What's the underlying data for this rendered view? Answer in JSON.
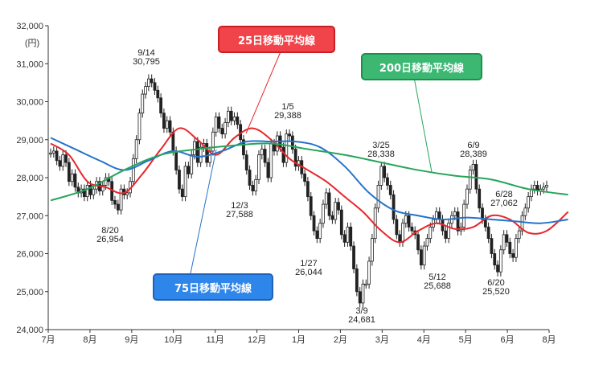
{
  "chart_data": {
    "type": "line",
    "y_unit_label": "(円)",
    "ylim": [
      24000,
      32000
    ],
    "y_ticks": [
      "24,000",
      "25,000",
      "26,000",
      "27,000",
      "28,000",
      "29,000",
      "30,000",
      "31,000",
      "32,000"
    ],
    "x_ticks": [
      "7月",
      "8月",
      "9月",
      "10月",
      "11月",
      "12月",
      "1月",
      "2月",
      "3月",
      "4月",
      "5月",
      "6月",
      "8月"
    ],
    "grid": false,
    "price_series": {
      "name": "",
      "color": "#222222",
      "values": [
        28650,
        28700,
        28450,
        28300,
        28600,
        28400,
        27900,
        28100,
        27750,
        27600,
        27700,
        27500,
        27800,
        27550,
        27700,
        27900,
        27650,
        27800,
        28000,
        27900,
        27400,
        27300,
        27150,
        27700,
        27550,
        27600,
        27900,
        28500,
        29000,
        29700,
        30200,
        30400,
        30600,
        30500,
        30300,
        30100,
        29700,
        29300,
        29500,
        29200,
        28700,
        28200,
        27700,
        27500,
        28300,
        28100,
        28600,
        28950,
        28400,
        28800,
        28900,
        28400,
        28700,
        29200,
        29600,
        29300,
        29150,
        29450,
        29750,
        29500,
        29600,
        29400,
        29000,
        28600,
        28200,
        27800,
        27650,
        27950,
        28600,
        28750,
        28400,
        28000,
        28900,
        28700,
        29100,
        28800,
        28400,
        29150,
        29100,
        28750,
        28300,
        28450,
        28100,
        27900,
        27500,
        27000,
        26600,
        26400,
        26800,
        27300,
        27600,
        27000,
        26900,
        27350,
        27150,
        26500,
        26300,
        26700,
        26200,
        25600,
        25000,
        24700,
        25200,
        25200,
        25800,
        26400,
        27200,
        27800,
        28300,
        28000,
        27800,
        27550,
        26900,
        26500,
        26300,
        26800,
        27000,
        26700,
        26600,
        26500,
        26100,
        25700,
        26200,
        26400,
        26700,
        26900,
        27100,
        26900,
        26600,
        26400,
        26800,
        27000,
        27100,
        26600,
        26700,
        27300,
        27700,
        28200,
        28350,
        27700,
        27200,
        26900,
        26700,
        26400,
        26000,
        25700,
        25520,
        26100,
        26500,
        26300,
        26000,
        25900,
        26400,
        26600,
        27000,
        27200,
        27500,
        27700,
        27800,
        27650,
        27700,
        27750,
        27800
      ]
    },
    "moving_averages": [
      {
        "name": "25日移動平均線",
        "color": "#e8262a",
        "x": [
          0,
          6,
          12,
          18,
          24,
          30,
          36,
          42,
          48,
          54,
          60,
          66,
          72,
          78,
          84,
          90,
          96,
          102,
          108,
          114,
          120,
          126,
          132,
          138,
          144,
          150,
          156,
          162,
          169
        ],
        "values": [
          28900,
          28600,
          27900,
          27750,
          27600,
          28100,
          28750,
          29300,
          29000,
          28600,
          29050,
          29300,
          29000,
          28500,
          28200,
          27900,
          27500,
          27100,
          26600,
          26300,
          26600,
          26800,
          26650,
          26700,
          27000,
          26900,
          26550,
          26600,
          27100
        ]
      },
      {
        "name": "75日移動平均線",
        "color": "#2573c9",
        "x": [
          0,
          8,
          16,
          24,
          32,
          40,
          48,
          56,
          64,
          72,
          80,
          88,
          96,
          104,
          112,
          120,
          128,
          136,
          144,
          152,
          160,
          169
        ],
        "values": [
          29050,
          28750,
          28450,
          28200,
          28450,
          28700,
          28550,
          28700,
          28950,
          28950,
          28950,
          28800,
          28300,
          27600,
          27150,
          27000,
          26900,
          26950,
          26900,
          26850,
          26800,
          26900
        ]
      },
      {
        "name": "200日移動平均線",
        "color": "#27a55a",
        "x": [
          0,
          12,
          24,
          36,
          48,
          60,
          72,
          84,
          96,
          108,
          120,
          132,
          144,
          156,
          169
        ],
        "values": [
          27400,
          27700,
          28200,
          28600,
          28750,
          28850,
          28900,
          28750,
          28600,
          28400,
          28200,
          28050,
          27950,
          27700,
          27550
        ]
      }
    ],
    "annotations": [
      {
        "date": "9/14",
        "value": "30,795"
      },
      {
        "date": "8/20",
        "value": "26,954"
      },
      {
        "date": "1/5",
        "value": "29,388"
      },
      {
        "date": "12/3",
        "value": "27,588"
      },
      {
        "date": "3/25",
        "value": "28,338"
      },
      {
        "date": "1/27",
        "value": "26,044"
      },
      {
        "date": "3/9",
        "value": "24,681"
      },
      {
        "date": "6/9",
        "value": "28,389"
      },
      {
        "date": "6/28",
        "value": "27,062"
      },
      {
        "date": "5/12",
        "value": "25,688"
      },
      {
        "date": "6/20",
        "value": "25,520"
      }
    ]
  }
}
